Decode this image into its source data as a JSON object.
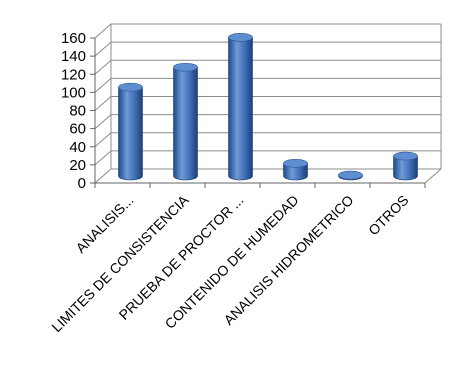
{
  "chart_data": {
    "type": "bar",
    "three_d": true,
    "title": "",
    "xlabel": "",
    "ylabel": "",
    "ylim": [
      0,
      160
    ],
    "y_ticks": [
      0,
      20,
      40,
      60,
      80,
      100,
      120,
      140,
      160
    ],
    "grid": true,
    "legend": "none",
    "bar_color": "#4a7bc4",
    "categories": [
      "ANALISIS...",
      "LIMITES DE CONSISTENCIA",
      "PRUEBA DE PROCTOR ...",
      "CONTENIDO DE HUMEDAD",
      "ANALISIS HIDROMETRICO",
      "OTROS"
    ],
    "values": [
      98,
      120,
      153,
      14,
      1,
      22
    ]
  }
}
